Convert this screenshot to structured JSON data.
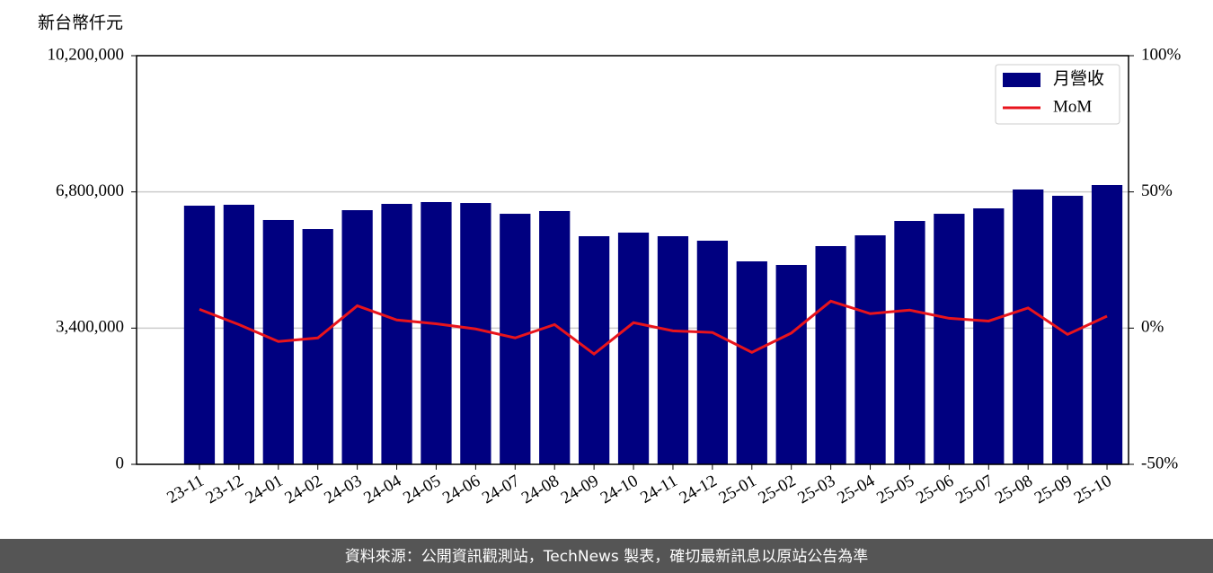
{
  "chart_data": {
    "type": "bar-line",
    "y_label": "新台幣仟元",
    "categories": [
      "23-11",
      "23-12",
      "24-01",
      "24-02",
      "24-03",
      "24-04",
      "24-05",
      "24-06",
      "24-07",
      "24-08",
      "24-09",
      "24-10",
      "24-11",
      "24-12",
      "25-01",
      "25-02",
      "25-03",
      "25-04",
      "25-05",
      "25-06",
      "25-07",
      "25-08",
      "25-09",
      "25-10"
    ],
    "series": [
      {
        "name": "月營收",
        "color": "#000080",
        "type": "bar",
        "values": [
          6456000,
          6479000,
          6098000,
          5873000,
          6344000,
          6501000,
          6546000,
          6523000,
          6254000,
          6322000,
          5694000,
          5784000,
          5694000,
          5582000,
          5066000,
          4977000,
          5447000,
          5716000,
          6075000,
          6254000,
          6389000,
          6860000,
          6703000,
          6972000
        ]
      },
      {
        "name": "MoM",
        "color": "#e8141c",
        "type": "line",
        "axis": "y2",
        "values": [
          6.9,
          1.3,
          -4.9,
          -3.6,
          8.2,
          3.0,
          1.6,
          -0.3,
          -3.6,
          1.3,
          -9.5,
          2.0,
          -1.0,
          -1.6,
          -8.9,
          -1.8,
          9.9,
          5.3,
          6.6,
          3.6,
          2.6,
          7.4,
          -2.3,
          4.4
        ]
      }
    ],
    "ylim": [
      0,
      10200000
    ],
    "yticks": [
      0,
      {
        "value": 3400000,
        "label": "3,400,000"
      },
      {
        "value": 6800000,
        "label": "6,800,000"
      },
      {
        "value": 10200000,
        "label": "10,200,000"
      }
    ],
    "y2lim": [
      -50,
      100
    ],
    "y2ticks": [
      {
        "value": -50,
        "label": "-50%"
      },
      {
        "value": 0,
        "label": "0%"
      },
      {
        "value": 50,
        "label": "50%"
      },
      {
        "value": 100,
        "label": "100%"
      }
    ],
    "grid": true,
    "legend": "upper right"
  },
  "footer": "資料來源：公開資訊觀測站，TechNews 製表，確切最新訊息以原站公告為準"
}
